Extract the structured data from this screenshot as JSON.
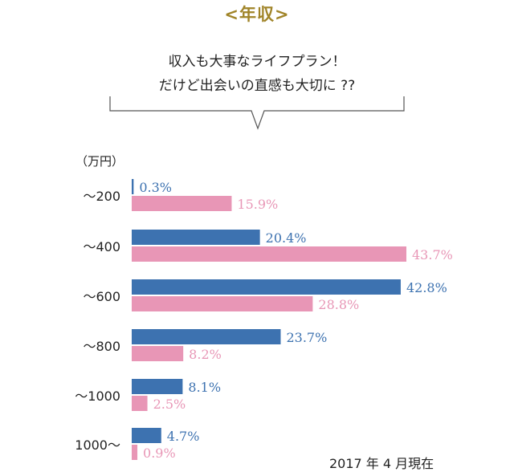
{
  "header": {
    "title": "<年収>",
    "quote_line1": "収入も大事なライフプラン！",
    "quote_line2": "だけど出会いの直感も大切に ??"
  },
  "note": "2017 年 4 月現在",
  "colors": {
    "blue": "#3d72b0",
    "pink": "#e896b6",
    "text": "#222222",
    "gold": "#a08428"
  },
  "chart_data": {
    "type": "bar",
    "orientation": "horizontal",
    "unit_label": "（万円）",
    "categories": [
      "～200",
      "～400",
      "～600",
      "～800",
      "～1000",
      "1000～"
    ],
    "series": [
      {
        "values": [
          0.3,
          20.4,
          42.8,
          23.7,
          8.1,
          4.7
        ],
        "labels": [
          "0.3%",
          "20.4%",
          "42.8%",
          "23.7%",
          "8.1%",
          "4.7%"
        ],
        "color": "#3d72b0"
      },
      {
        "values": [
          15.9,
          43.7,
          28.8,
          8.2,
          2.5,
          0.9
        ],
        "labels": [
          "15.9%",
          "43.7%",
          "28.8%",
          "8.2%",
          "2.5%",
          "0.9%"
        ],
        "color": "#e896b6"
      }
    ],
    "xlim": [
      0,
      43.7
    ]
  }
}
